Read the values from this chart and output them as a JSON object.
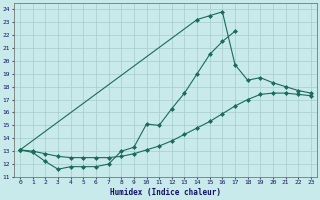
{
  "xlabel": "Humidex (Indice chaleur)",
  "bg_color": "#c8eaea",
  "grid_color": "#a8cccc",
  "line_color": "#1a6b5a",
  "xlim": [
    -0.5,
    23.5
  ],
  "ylim": [
    11,
    24.5
  ],
  "yticks": [
    11,
    12,
    13,
    14,
    15,
    16,
    17,
    18,
    19,
    20,
    21,
    22,
    23,
    24
  ],
  "xticks": [
    0,
    1,
    2,
    3,
    4,
    5,
    6,
    7,
    8,
    9,
    10,
    11,
    12,
    13,
    14,
    15,
    16,
    17,
    18,
    19,
    20,
    21,
    22,
    23
  ],
  "line1_x": [
    0,
    1,
    2,
    3,
    4,
    5,
    6,
    7,
    8,
    9,
    10,
    11,
    12,
    13,
    14,
    15,
    16,
    17
  ],
  "line1_y": [
    13.1,
    12.9,
    12.2,
    11.6,
    11.8,
    11.8,
    11.8,
    12.0,
    13.0,
    13.3,
    15.1,
    15.0,
    16.3,
    17.5,
    19.0,
    20.5,
    21.5,
    22.3
  ],
  "line2_x": [
    0,
    1,
    2,
    3,
    4,
    5,
    6,
    7,
    8,
    9,
    10,
    11,
    12,
    13,
    14,
    15,
    16,
    17,
    18,
    19,
    20,
    21,
    22,
    23
  ],
  "line2_y": [
    13.1,
    13.0,
    12.8,
    12.6,
    12.5,
    12.5,
    12.5,
    12.5,
    12.6,
    12.8,
    13.1,
    13.4,
    13.8,
    14.3,
    14.8,
    15.3,
    15.9,
    16.5,
    17.0,
    17.4,
    17.5,
    17.5,
    17.4,
    17.3
  ],
  "line3_x": [
    0,
    14,
    15,
    16,
    17,
    18,
    19,
    20,
    21,
    22,
    23
  ],
  "line3_y": [
    13.1,
    23.2,
    23.5,
    23.8,
    19.7,
    18.5,
    18.7,
    18.3,
    18.0,
    17.7,
    17.5
  ]
}
